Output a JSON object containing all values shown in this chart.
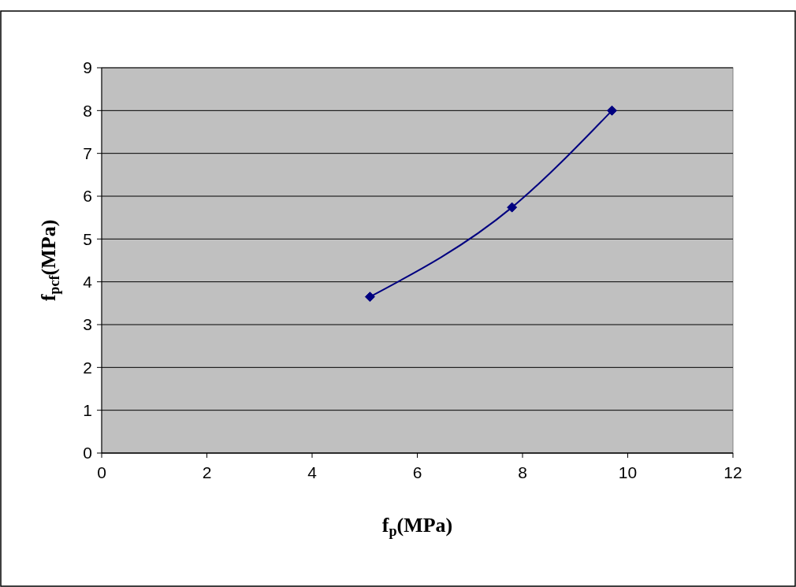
{
  "chart_data": {
    "type": "line",
    "xlabel": "f$_{p}$(MPa)",
    "ylabel": "f$_{pcf}$(MPa)",
    "x": [
      5.1,
      7.8,
      9.7
    ],
    "series": [
      {
        "color": "#000080",
        "values": [
          3.65,
          5.74,
          8.0
        ]
      }
    ],
    "xlim": [
      0,
      12
    ],
    "xticks": [
      0,
      2,
      4,
      6,
      8,
      10,
      12
    ],
    "ylim": [
      0,
      9
    ],
    "yticks": [
      0,
      1,
      2,
      3,
      4,
      5,
      6,
      7,
      8,
      9
    ],
    "grid": "y",
    "marker": "diamond",
    "line_style": "solid"
  }
}
